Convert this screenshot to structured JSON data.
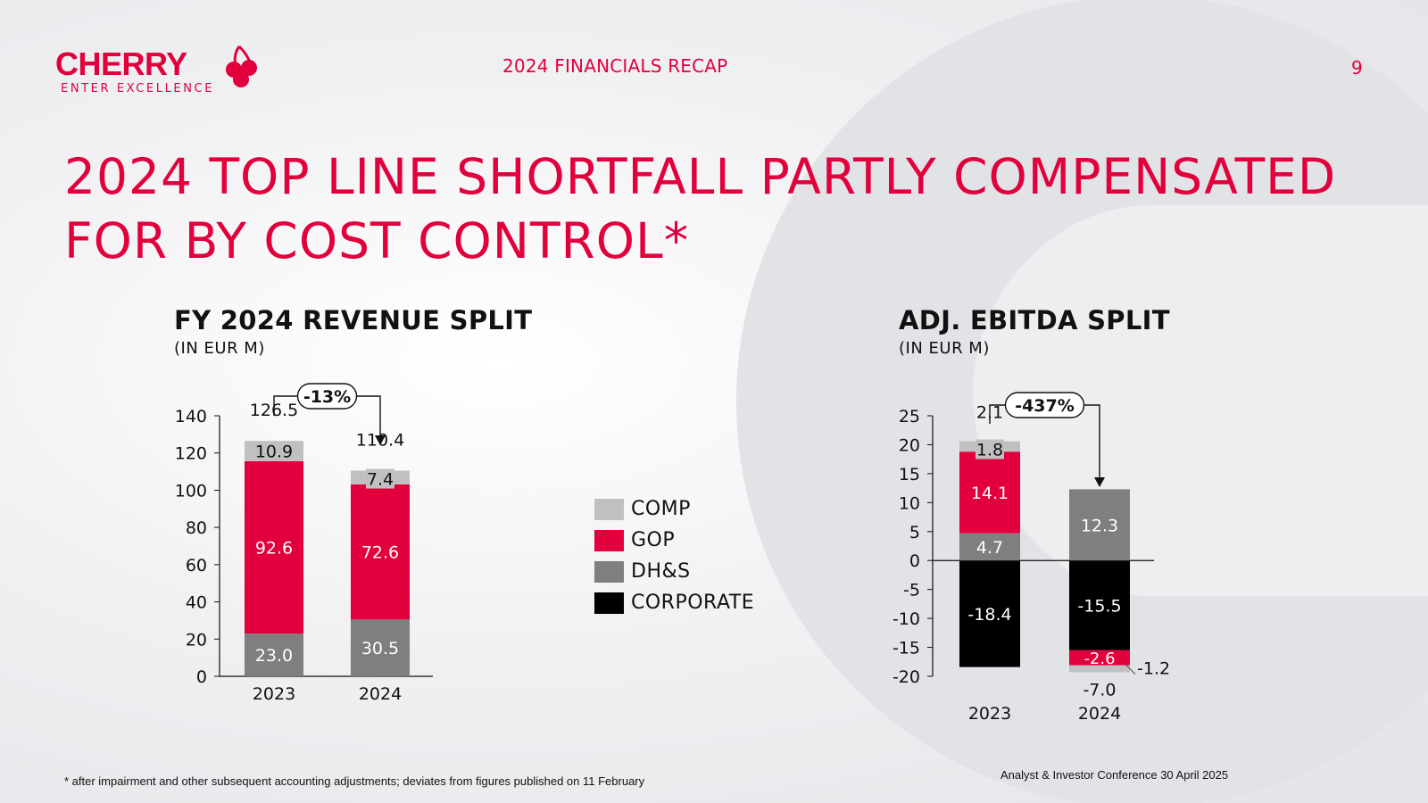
{
  "header": {
    "logo_word": "CHERRY",
    "logo_tagline": "ENTER EXCELLENCE",
    "section": "2024 FINANCIALS RECAP",
    "page_number": "9"
  },
  "title": "2024 TOP LINE SHORTFALL PARTLY COMPENSATED FOR BY COST CONTROL*",
  "colors": {
    "accent": "#e1003c",
    "comp": "#c0c0c2",
    "gop": "#e1003c",
    "dhs": "#7f7f7f",
    "corporate": "#000000"
  },
  "legend": [
    {
      "key": "comp",
      "label": "COMP"
    },
    {
      "key": "gop",
      "label": "GOP"
    },
    {
      "key": "dhs",
      "label": "DH&S"
    },
    {
      "key": "corporate",
      "label": "CORPORATE"
    }
  ],
  "chart_data": [
    {
      "type": "bar",
      "stacked": true,
      "title": "FY 2024 REVENUE SPLIT",
      "subtitle": "(IN EUR M)",
      "categories": [
        "2023",
        "2024"
      ],
      "series": [
        {
          "name": "DH&S",
          "key": "dhs",
          "values": [
            23.0,
            30.5
          ],
          "labels": [
            "23.0",
            "30.5"
          ]
        },
        {
          "name": "GOP",
          "key": "gop",
          "values": [
            92.6,
            72.6
          ],
          "labels": [
            "92.6",
            "72.6"
          ]
        },
        {
          "name": "COMP",
          "key": "comp",
          "values": [
            10.9,
            7.4
          ],
          "labels": [
            "10.9",
            "7.4"
          ]
        }
      ],
      "totals": [
        126.5,
        110.4
      ],
      "total_labels": [
        "126.5",
        "110.4"
      ],
      "yticks": [
        0,
        20,
        40,
        60,
        80,
        100,
        120,
        140
      ],
      "ylim": [
        0,
        140
      ],
      "change_label": "-13%"
    },
    {
      "type": "bar",
      "stacked": true,
      "title": "ADJ. EBITDA SPLIT",
      "subtitle": "(IN EUR M)",
      "categories": [
        "2023",
        "2024"
      ],
      "series": [
        {
          "name": "CORPORATE",
          "key": "corporate",
          "values": [
            -18.4,
            -15.5
          ],
          "labels": [
            "-18.4",
            "-15.5"
          ]
        },
        {
          "name": "DH&S",
          "key": "dhs",
          "values": [
            4.7,
            12.3
          ],
          "labels": [
            "4.7",
            "12.3"
          ]
        },
        {
          "name": "GOP",
          "key": "gop",
          "values": [
            14.1,
            -2.6
          ],
          "labels": [
            "14.1",
            "-2.6"
          ]
        },
        {
          "name": "COMP",
          "key": "comp",
          "values": [
            1.8,
            -1.2
          ],
          "labels": [
            "1.8",
            "-1.2"
          ]
        }
      ],
      "totals": [
        2.1,
        -7.0
      ],
      "total_labels": [
        "2.1",
        "-7.0"
      ],
      "yticks": [
        -20,
        -15,
        -10,
        -5,
        0,
        5,
        10,
        15,
        20,
        25
      ],
      "ylim": [
        -20,
        25
      ],
      "change_label": "-437%"
    }
  ],
  "footnote": "* after impairment and other subsequent accounting adjustments; deviates from figures published on 11 February",
  "conference": "Analyst & Investor Conference 30 April 2025"
}
